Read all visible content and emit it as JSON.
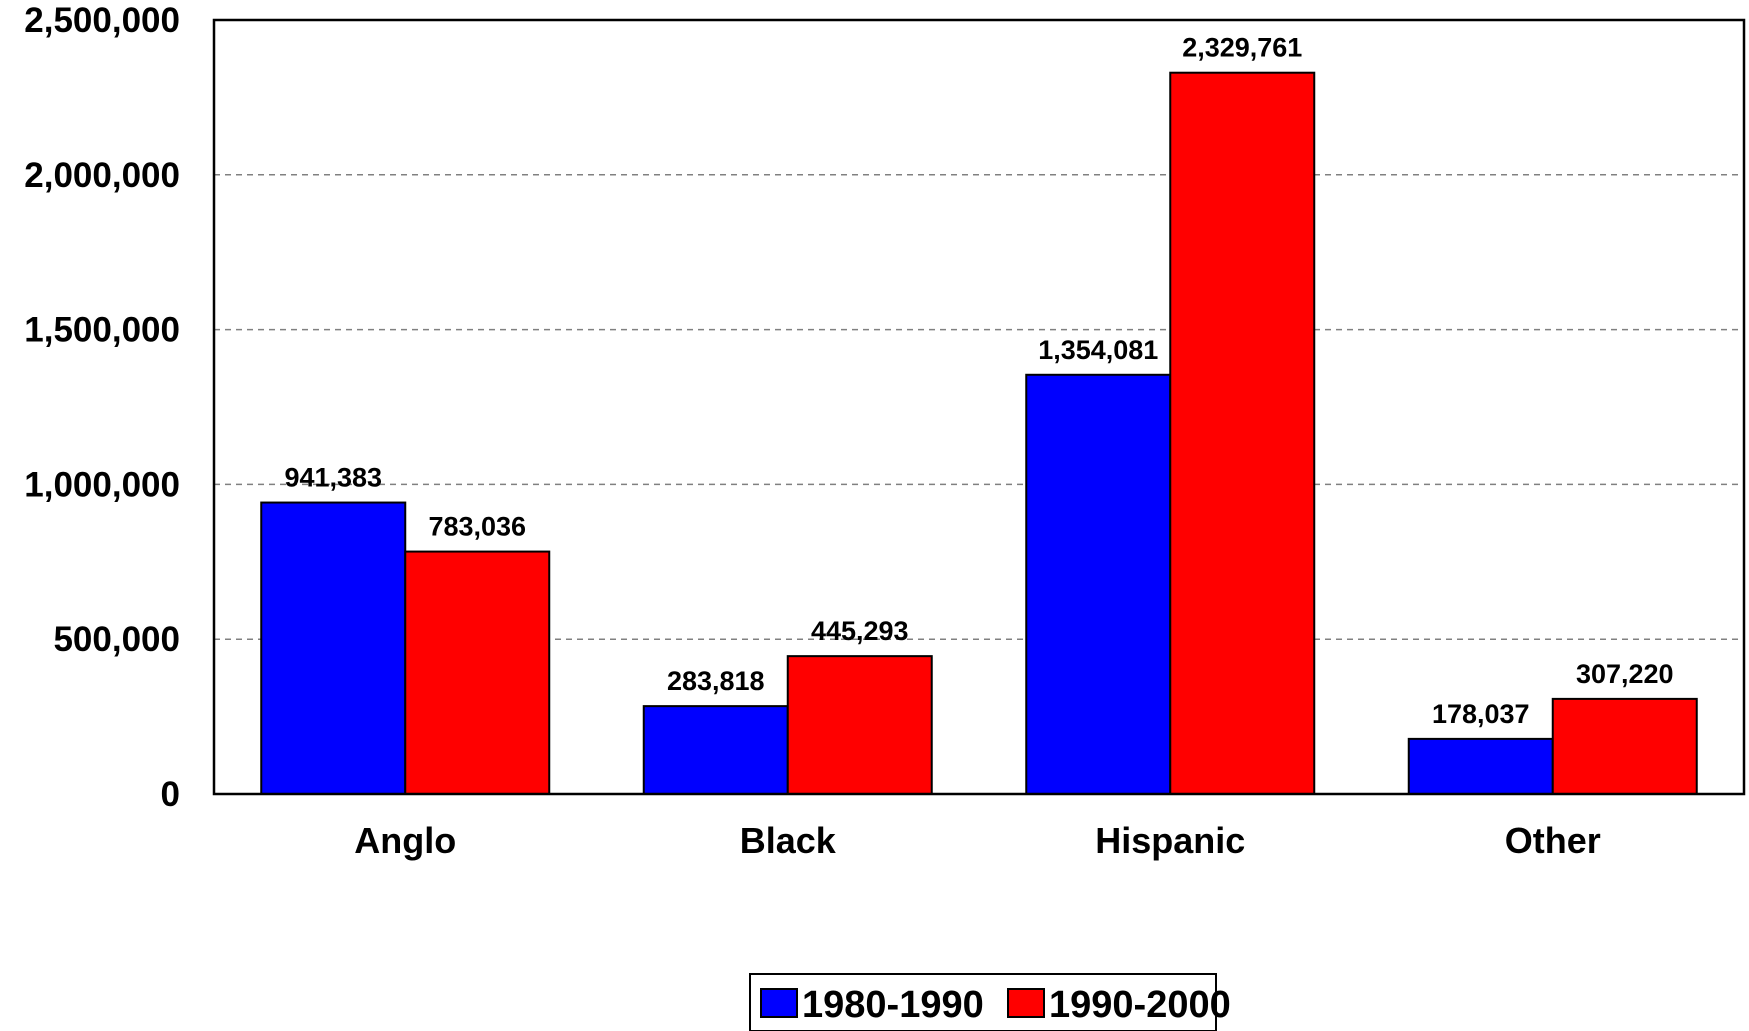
{
  "chart_data": {
    "type": "bar",
    "title": "",
    "xlabel": "",
    "ylabel": "",
    "categories": [
      "Anglo",
      "Black",
      "Hispanic",
      "Other"
    ],
    "series": [
      {
        "name": "1980-1990",
        "color": "#0000FF",
        "values": [
          941383,
          283818,
          1354081,
          178037
        ],
        "labels": [
          "941,383",
          "283,818",
          "1,354,081",
          "178,037"
        ]
      },
      {
        "name": "1990-2000",
        "color": "#FF0000",
        "values": [
          783036,
          445293,
          2329761,
          307220
        ],
        "labels": [
          "783,036",
          "445,293",
          "2,329,761",
          "307,220"
        ]
      }
    ],
    "ylim": [
      0,
      2500000
    ],
    "yticks": [
      0,
      500000,
      1000000,
      1500000,
      2000000,
      2500000
    ],
    "ytick_labels": [
      "0",
      "500,000",
      "1,000,000",
      "1,500,000",
      "2,000,000",
      "2,500,000"
    ],
    "grid": "horizontal dashed",
    "legend": "bottom-center"
  }
}
